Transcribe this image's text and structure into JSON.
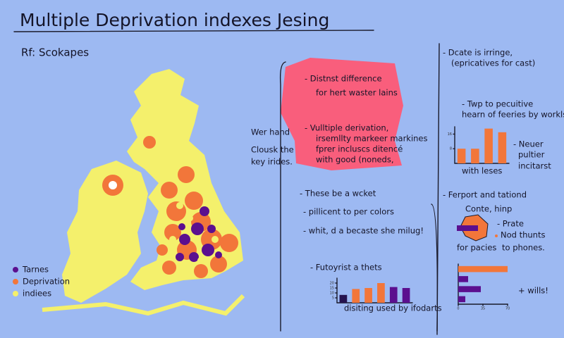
{
  "header": {
    "title": "Multiple Deprivation indexes Jesing",
    "subtitle": "Rf: Scokapes"
  },
  "legend": [
    {
      "label": "Tarnes",
      "color": "#5b0f8f"
    },
    {
      "label": "Deprivation",
      "color": "#f2763a"
    },
    {
      "label": "indiees",
      "color": "#f4f06c"
    }
  ],
  "side_note": [
    "Wer hand",
    "Clousk the",
    "key irides."
  ],
  "callout": [
    "- Distnst difference",
    "for hert waster lains",
    "- Vulltiple derivation,",
    "irsemllty markeer markines",
    "fprer incluscs ditencé",
    "with good (noneds,"
  ],
  "middle_list": [
    "- These be a wcket",
    "- pillicent to per colors",
    "- whit, d a becaste she milug!"
  ],
  "right_top": [
    "- Dcate is irringe,",
    "(epricatives for cast)",
    "- Twp to pecuitive",
    "hearn of feeries by workls"
  ],
  "right_mid": [
    "- Ferport and tationd",
    "Conte, hinp",
    "- Prate",
    "Nod thunts",
    "for pacies",
    "to phones."
  ],
  "charts": [
    {
      "type": "bar",
      "notes": [
        "- Neuer",
        "pultier",
        "incitarst"
      ],
      "caption": "with leses",
      "values": [
        8,
        8,
        19,
        17
      ],
      "color": "#f2763a",
      "ylim": [
        0,
        20
      ],
      "yticks": [
        8,
        16
      ]
    },
    {
      "type": "bar",
      "title": "- Futoyrist a thets",
      "caption": "disiting used by ifodarts",
      "values": [
        8,
        14,
        15,
        20,
        16,
        15
      ],
      "colors": [
        "#25134f",
        "#f2763a",
        "#f2763a",
        "#f2763a",
        "#5b0f8f",
        "#5b0f8f"
      ],
      "ylim": [
        0,
        25
      ],
      "yticks": [
        5,
        10,
        15,
        20
      ]
    },
    {
      "type": "hbar",
      "note": "+ wills!",
      "values": [
        70,
        14,
        32,
        10
      ],
      "colors": [
        "#f2763a",
        "#5b0f8f",
        "#5b0f8f",
        "#5b0f8f"
      ],
      "xlim": [
        0,
        70
      ],
      "xticks": [
        0,
        35,
        70
      ]
    }
  ]
}
